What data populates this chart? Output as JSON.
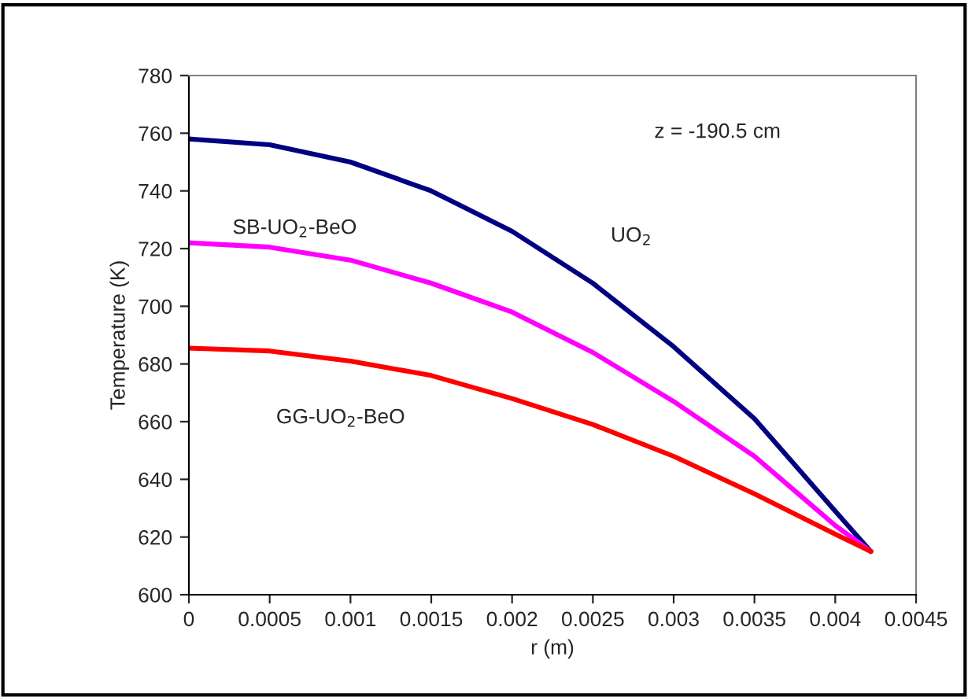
{
  "chart_data": {
    "type": "line",
    "xlabel": "r (m)",
    "ylabel": "Temperature (K)",
    "x": [
      0,
      0.0005,
      0.001,
      0.0015,
      0.002,
      0.0025,
      0.003,
      0.0035,
      0.004,
      0.00422
    ],
    "series": [
      {
        "name": "UO$_{2}$",
        "color": "#000080",
        "values": [
          758,
          756,
          750,
          740,
          726,
          708,
          686,
          661,
          629,
          615
        ]
      },
      {
        "name": "SB-UO$_{2}$-BeO",
        "color": "#ff00ff",
        "values": [
          722,
          720.5,
          716,
          708,
          698,
          684,
          667,
          648,
          624,
          615
        ]
      },
      {
        "name": "GG-UO$_{2}$-BeO",
        "color": "#ff0000",
        "values": [
          685.5,
          684.5,
          681,
          676,
          668,
          659,
          648,
          635,
          621,
          615
        ]
      }
    ],
    "annotations": [
      "z = -190.5 cm"
    ],
    "xlim": [
      0,
      0.0045
    ],
    "xticks": [
      0,
      0.0005,
      0.001,
      0.0015,
      0.002,
      0.0025,
      0.003,
      0.0035,
      0.004,
      0.0045
    ],
    "ylim": [
      600,
      780
    ],
    "yticks": [
      600,
      620,
      640,
      660,
      680,
      700,
      720,
      740,
      760,
      780
    ],
    "grid": false,
    "legend": false,
    "line_style": "solid",
    "marker": "none"
  }
}
